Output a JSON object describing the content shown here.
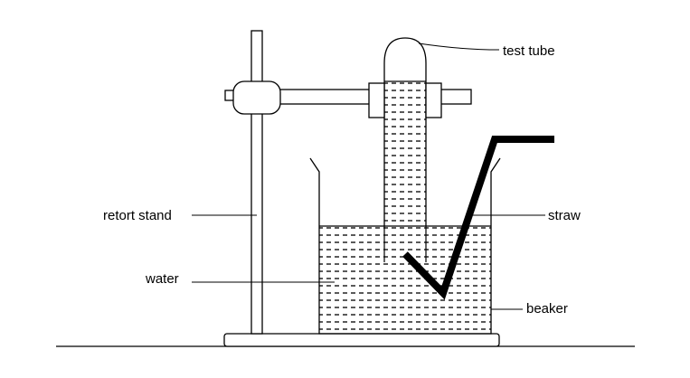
{
  "labels": {
    "test_tube": "test tube",
    "retort_stand": "retort stand",
    "straw": "straw",
    "water": "water",
    "beaker": "beaker"
  },
  "colors": {
    "line": "#000000",
    "background": "#ffffff"
  }
}
